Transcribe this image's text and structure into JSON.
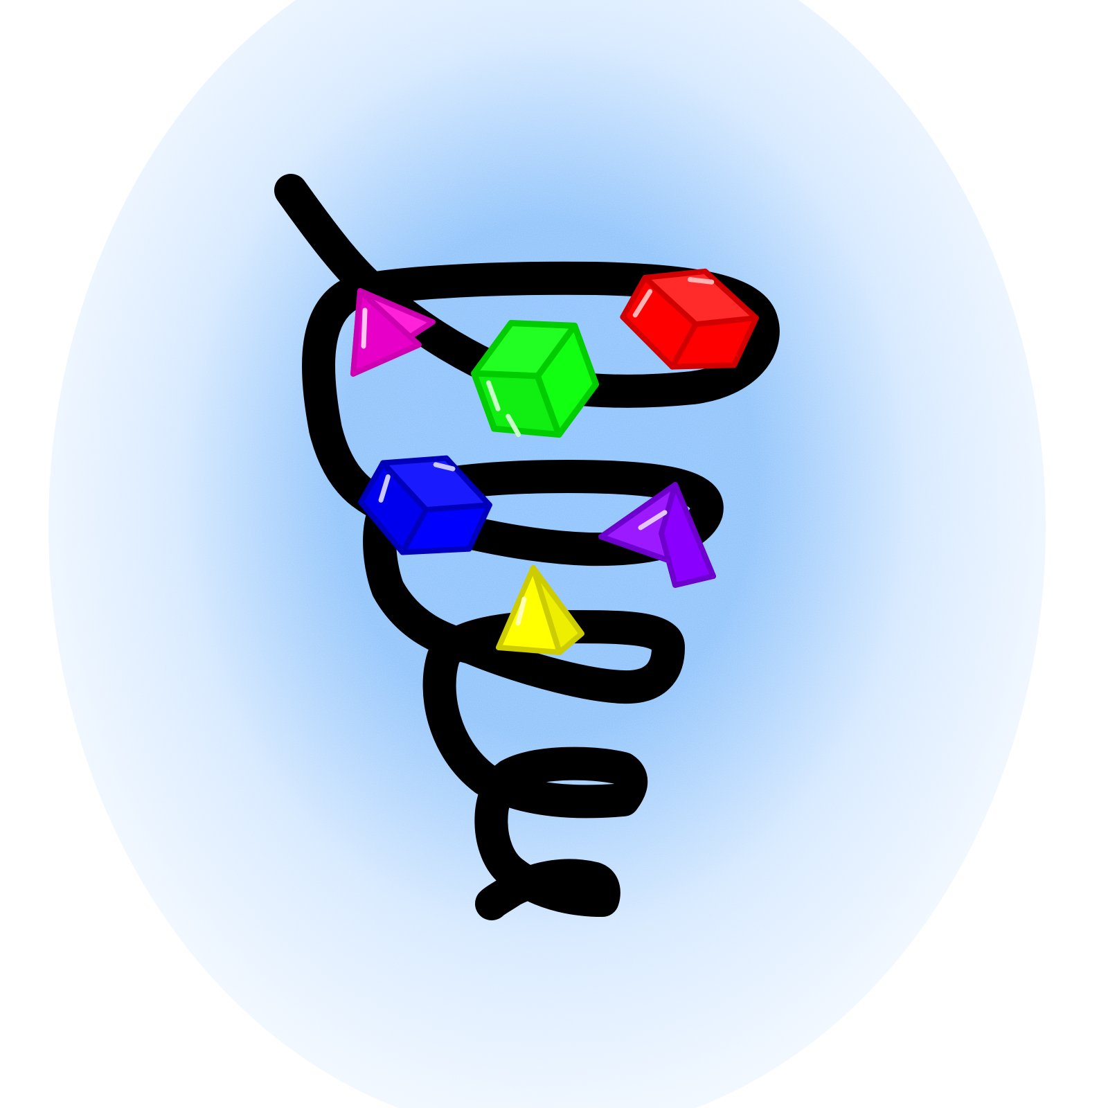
{
  "illustration": {
    "background": {
      "glow_color": "#8cc2ff",
      "edge_color": "#ffffff"
    },
    "spiral": {
      "color": "#000000"
    },
    "gems": [
      {
        "name": "magenta-pyramid",
        "shape": "pyramid",
        "color": "#ff22d9"
      },
      {
        "name": "green-cube",
        "shape": "cube",
        "color": "#11ff11"
      },
      {
        "name": "red-cube",
        "shape": "cube",
        "color": "#ff0000"
      },
      {
        "name": "blue-cube",
        "shape": "cube",
        "color": "#0000ff"
      },
      {
        "name": "purple-pyramid",
        "shape": "pyramid",
        "color": "#8a00ff"
      },
      {
        "name": "yellow-pyramid",
        "shape": "pyramid",
        "color": "#ffff00"
      }
    ]
  }
}
